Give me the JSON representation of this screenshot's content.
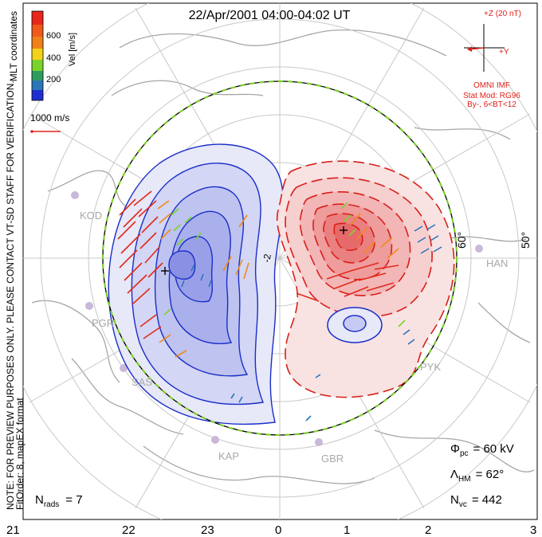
{
  "title": "22/Apr/2001 04:00-04:02 UT",
  "colorbar": {
    "label": "Vel [m/s]",
    "ticks": [
      "600",
      "400",
      "200"
    ],
    "colors": [
      "#e8261c",
      "#f0801a",
      "#f2d21b",
      "#7ad32d",
      "#2f9c5e",
      "#2b76b9",
      "#1e2ecf"
    ]
  },
  "side_note_1": "MLT coordinates",
  "scale_vector": {
    "label": "1000 m/s"
  },
  "imf": {
    "header": "+Z (20 nT)",
    "y_label": "+Y",
    "source": "OMNI IMF",
    "stat_mod": "Stat Mod: RG96",
    "condition": "By-, 6<BT<12",
    "color": "#e0201a"
  },
  "latitude_labels": [
    "60°",
    "50°"
  ],
  "stations": [
    "KOD",
    "PGR",
    "SAS",
    "KAP",
    "GBR",
    "PYK",
    "HAN"
  ],
  "params": {
    "phi_pc": {
      "symbol": "Φ",
      "sub": "pc",
      "value": "= 60 kV"
    },
    "lambda_hm": {
      "symbol": "Λ",
      "sub": "HM",
      "value": "= 62°"
    },
    "n_vc": {
      "symbol": "N",
      "sub": "vc",
      "value": "= 442"
    },
    "n_rads": {
      "symbol": "N",
      "sub": "rads",
      "value": "= 7"
    }
  },
  "vertical_note_1": "NOTE: FOR PREVIEW PURPOSES ONLY. PLEASE CONTACT VT-SD STAFF FOR VERIFICATION.",
  "vertical_note_2": "FitOrder: 8, mapEX format",
  "mlt_axis": [
    "21",
    "22",
    "23",
    "0",
    "1",
    "2",
    "3"
  ],
  "contour_label": "-2",
  "colors": {
    "negative_cell": "#1a2ec8",
    "positive_cell": "#d8201a",
    "grid": "#bdbdbd",
    "coast": "#9a9a9a",
    "hm_boundary": "#7fd02b"
  }
}
